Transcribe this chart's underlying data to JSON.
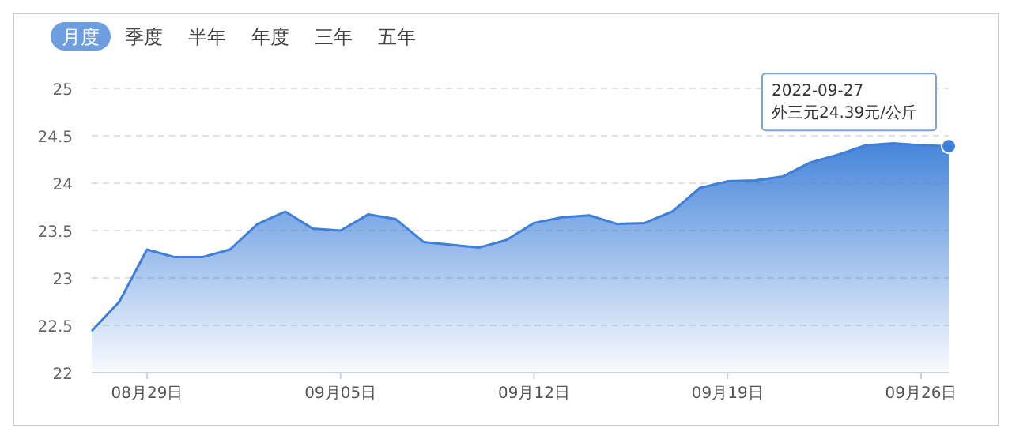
{
  "chart_data": {
    "type": "area",
    "x": [
      "2022-08-27",
      "2022-08-28",
      "2022-08-29",
      "2022-08-30",
      "2022-08-31",
      "2022-09-01",
      "2022-09-02",
      "2022-09-03",
      "2022-09-04",
      "2022-09-05",
      "2022-09-06",
      "2022-09-07",
      "2022-09-08",
      "2022-09-09",
      "2022-09-10",
      "2022-09-11",
      "2022-09-12",
      "2022-09-13",
      "2022-09-14",
      "2022-09-15",
      "2022-09-16",
      "2022-09-17",
      "2022-09-18",
      "2022-09-19",
      "2022-09-20",
      "2022-09-21",
      "2022-09-22",
      "2022-09-23",
      "2022-09-24",
      "2022-09-25",
      "2022-09-26",
      "2022-09-27"
    ],
    "series": [
      {
        "color": "#3d7fd9",
        "values": [
          22.44,
          22.75,
          23.3,
          23.22,
          23.22,
          23.3,
          23.57,
          23.7,
          23.52,
          23.5,
          23.67,
          23.62,
          23.38,
          23.35,
          23.32,
          23.4,
          23.58,
          23.64,
          23.66,
          23.57,
          23.58,
          23.7,
          23.95,
          24.02,
          24.03,
          24.07,
          24.22,
          24.3,
          24.4,
          24.42,
          24.4,
          24.39
        ]
      }
    ],
    "xlim": [
      "2022-08-27",
      "2022-09-27"
    ],
    "xticks": [
      {
        "value": "2022-08-29",
        "label": "08月29日"
      },
      {
        "value": "2022-09-05",
        "label": "09月05日"
      },
      {
        "value": "2022-09-12",
        "label": "09月12日"
      },
      {
        "value": "2022-09-19",
        "label": "09月19日"
      },
      {
        "value": "2022-09-26",
        "label": "09月26日"
      }
    ],
    "ylim": [
      22,
      25
    ],
    "yticks": [
      22,
      22.5,
      23,
      23.5,
      24,
      24.5,
      25
    ],
    "grid": "y",
    "marker": "none",
    "line_style": "solid",
    "annotations": [
      "月度",
      "季度",
      "半年",
      "年度",
      "三年",
      "五年",
      {
        "text": "2022-09-27\n外三元24.39元/公斤",
        "x": "2022-09-27",
        "y": 24.39
      }
    ]
  }
}
